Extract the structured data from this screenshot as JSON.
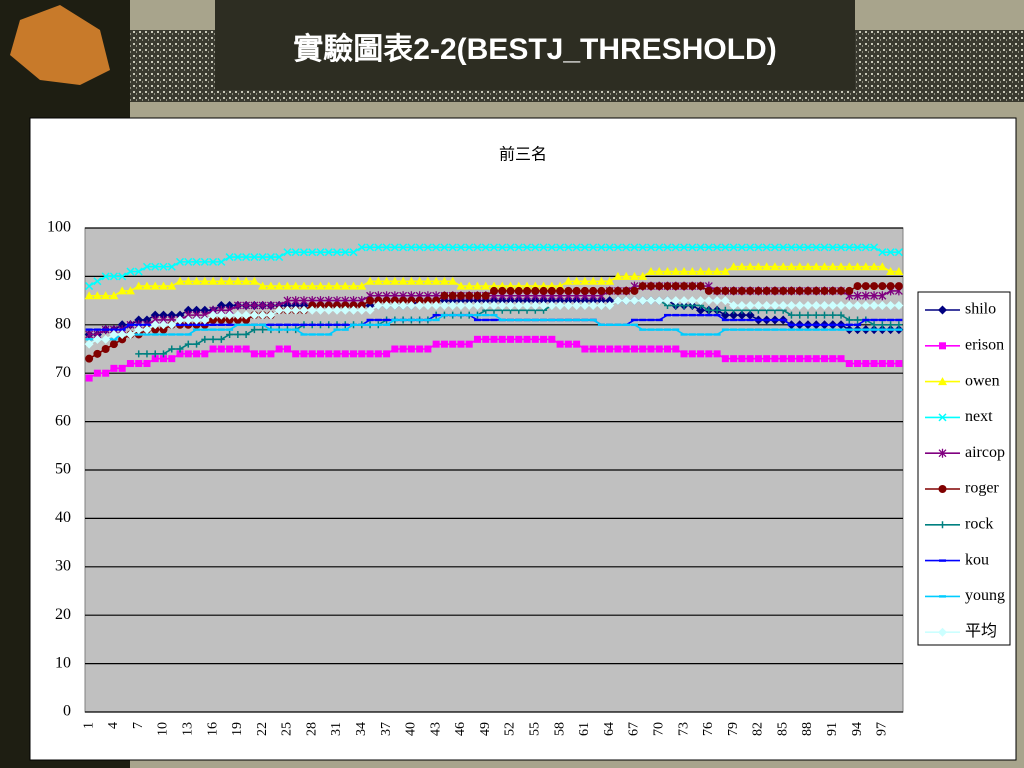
{
  "slide_title": "實驗圖表2-2(BESTJ_THRESHOLD)",
  "chart_data": {
    "type": "line",
    "title": "前三名",
    "categories": [
      "1",
      null,
      null,
      "4",
      null,
      null,
      "7",
      null,
      null,
      "10",
      null,
      null,
      "13",
      null,
      null,
      "16",
      null,
      null,
      "19",
      null,
      null,
      "22",
      null,
      null,
      "25",
      null,
      null,
      "28",
      null,
      null,
      "31",
      null,
      null,
      "34",
      null,
      null,
      "37",
      null,
      null,
      "40",
      null,
      null,
      "43",
      null,
      null,
      "46",
      null,
      null,
      "49",
      null,
      null,
      "52",
      null,
      null,
      "55",
      null,
      null,
      "58",
      null,
      null,
      "61",
      null,
      null,
      "64",
      null,
      null,
      "67",
      null,
      null,
      "70",
      null,
      null,
      "73",
      null,
      null,
      "76",
      null,
      null,
      "79",
      null,
      null,
      "82",
      null,
      null,
      "85",
      null,
      null,
      "88",
      null,
      null,
      "91",
      null,
      null,
      "94",
      null,
      null,
      "97",
      null,
      null
    ],
    "ylim": [
      0,
      100
    ],
    "yticks": [
      0,
      10,
      20,
      30,
      40,
      50,
      60,
      70,
      80,
      90,
      100
    ],
    "grid": true,
    "legend": "right",
    "series": [
      {
        "name": "shilo",
        "color": "#000080",
        "marker": "diamond",
        "values": [
          78,
          78,
          79,
          79,
          80,
          80,
          81,
          81,
          82,
          82,
          82,
          82,
          83,
          83,
          83,
          83,
          84,
          84,
          84,
          84,
          84,
          84,
          84,
          84,
          84,
          84,
          84,
          84,
          84,
          84,
          84,
          84,
          84,
          84,
          84,
          84,
          84,
          84,
          84,
          84,
          85,
          85,
          85,
          85,
          85,
          85,
          85,
          85,
          85,
          85,
          85,
          85,
          85,
          85,
          85,
          85,
          85,
          85,
          85,
          85,
          85,
          85,
          85,
          85,
          85,
          85,
          85,
          85,
          85,
          85,
          85,
          84,
          84,
          84,
          83,
          83,
          83,
          82,
          82,
          82,
          82,
          81,
          81,
          81,
          81,
          80,
          80,
          80,
          80,
          80,
          80,
          80,
          79,
          79,
          79,
          79,
          79,
          79,
          79
        ]
      },
      {
        "name": "erison",
        "color": "#ff00ff",
        "marker": "square",
        "values": [
          69,
          70,
          70,
          71,
          71,
          72,
          72,
          72,
          73,
          73,
          73,
          74,
          74,
          74,
          74,
          75,
          75,
          75,
          75,
          75,
          74,
          74,
          74,
          75,
          75,
          74,
          74,
          74,
          74,
          74,
          74,
          74,
          74,
          74,
          74,
          74,
          74,
          75,
          75,
          75,
          75,
          75,
          76,
          76,
          76,
          76,
          76,
          77,
          77,
          77,
          77,
          77,
          77,
          77,
          77,
          77,
          77,
          76,
          76,
          76,
          75,
          75,
          75,
          75,
          75,
          75,
          75,
          75,
          75,
          75,
          75,
          75,
          74,
          74,
          74,
          74,
          74,
          73,
          73,
          73,
          73,
          73,
          73,
          73,
          73,
          73,
          73,
          73,
          73,
          73,
          73,
          73,
          72,
          72,
          72,
          72,
          72,
          72,
          72
        ]
      },
      {
        "name": "owen",
        "color": "#ffff00",
        "marker": "triangle",
        "values": [
          86,
          86,
          86,
          86,
          87,
          87,
          88,
          88,
          88,
          88,
          88,
          89,
          89,
          89,
          89,
          89,
          89,
          89,
          89,
          89,
          89,
          88,
          88,
          88,
          88,
          88,
          88,
          88,
          88,
          88,
          88,
          88,
          88,
          88,
          89,
          89,
          89,
          89,
          89,
          89,
          89,
          89,
          89,
          89,
          89,
          88,
          88,
          88,
          88,
          88,
          88,
          88,
          88,
          88,
          88,
          88,
          88,
          88,
          89,
          89,
          89,
          89,
          89,
          89,
          90,
          90,
          90,
          90,
          91,
          91,
          91,
          91,
          91,
          91,
          91,
          91,
          91,
          91,
          92,
          92,
          92,
          92,
          92,
          92,
          92,
          92,
          92,
          92,
          92,
          92,
          92,
          92,
          92,
          92,
          92,
          92,
          92,
          91,
          91
        ]
      },
      {
        "name": "next",
        "color": "#00ffff",
        "marker": "x",
        "values": [
          88,
          89,
          90,
          90,
          90,
          91,
          91,
          92,
          92,
          92,
          92,
          93,
          93,
          93,
          93,
          93,
          93,
          94,
          94,
          94,
          94,
          94,
          94,
          94,
          95,
          95,
          95,
          95,
          95,
          95,
          95,
          95,
          95,
          96,
          96,
          96,
          96,
          96,
          96,
          96,
          96,
          96,
          96,
          96,
          96,
          96,
          96,
          96,
          96,
          96,
          96,
          96,
          96,
          96,
          96,
          96,
          96,
          96,
          96,
          96,
          96,
          96,
          96,
          96,
          96,
          96,
          96,
          96,
          96,
          96,
          96,
          96,
          96,
          96,
          96,
          96,
          96,
          96,
          96,
          96,
          96,
          96,
          96,
          96,
          96,
          96,
          96,
          96,
          96,
          96,
          96,
          96,
          96,
          96,
          96,
          96,
          95,
          95,
          95
        ]
      },
      {
        "name": "aircop",
        "color": "#800080",
        "marker": "star",
        "values": [
          78,
          78,
          79,
          79,
          79,
          80,
          80,
          80,
          81,
          81,
          81,
          81,
          82,
          82,
          82,
          83,
          83,
          83,
          84,
          84,
          84,
          84,
          84,
          84,
          85,
          85,
          85,
          85,
          85,
          85,
          85,
          85,
          85,
          85,
          86,
          86,
          86,
          86,
          86,
          86,
          86,
          86,
          86,
          86,
          86,
          86,
          86,
          86,
          86,
          86,
          86,
          86,
          86,
          86,
          86,
          86,
          86,
          86,
          86,
          86,
          86,
          86,
          86,
          87,
          87,
          87,
          88,
          88,
          88,
          88,
          88,
          88,
          88,
          88,
          88,
          88,
          87,
          87,
          87,
          87,
          87,
          87,
          87,
          87,
          87,
          87,
          87,
          87,
          87,
          87,
          87,
          87,
          86,
          86,
          86,
          86,
          86,
          87,
          87
        ]
      },
      {
        "name": "roger",
        "color": "#800000",
        "marker": "circle",
        "values": [
          73,
          74,
          75,
          76,
          77,
          78,
          78,
          79,
          79,
          79,
          80,
          80,
          80,
          80,
          80,
          81,
          81,
          81,
          81,
          81,
          82,
          82,
          82,
          83,
          83,
          83,
          83,
          84,
          84,
          84,
          84,
          84,
          84,
          84,
          85,
          85,
          85,
          85,
          85,
          85,
          85,
          85,
          85,
          86,
          86,
          86,
          86,
          86,
          86,
          87,
          87,
          87,
          87,
          87,
          87,
          87,
          87,
          87,
          87,
          87,
          87,
          87,
          87,
          87,
          87,
          87,
          87,
          88,
          88,
          88,
          88,
          88,
          88,
          88,
          88,
          87,
          87,
          87,
          87,
          87,
          87,
          87,
          87,
          87,
          87,
          87,
          87,
          87,
          87,
          87,
          87,
          87,
          87,
          88,
          88,
          88,
          88,
          88,
          88
        ]
      },
      {
        "name": "rock",
        "color": "#008080",
        "marker": "plus",
        "values": [
          null,
          null,
          null,
          null,
          null,
          null,
          74,
          74,
          74,
          74,
          75,
          75,
          76,
          76,
          77,
          77,
          77,
          78,
          78,
          78,
          79,
          79,
          79,
          79,
          79,
          79,
          80,
          80,
          80,
          80,
          80,
          80,
          80,
          80,
          80,
          80,
          81,
          81,
          81,
          81,
          81,
          81,
          82,
          82,
          82,
          82,
          82,
          82,
          83,
          83,
          83,
          83,
          83,
          83,
          83,
          83,
          84,
          84,
          84,
          84,
          84,
          84,
          84,
          84,
          85,
          85,
          85,
          85,
          85,
          85,
          84,
          84,
          84,
          84,
          84,
          83,
          83,
          83,
          83,
          83,
          83,
          83,
          83,
          83,
          83,
          82,
          82,
          82,
          82,
          82,
          82,
          82,
          81,
          81,
          81,
          80,
          80,
          80,
          80
        ]
      },
      {
        "name": "kou",
        "color": "#0000ff",
        "marker": "dash",
        "values": [
          79,
          79,
          79,
          79,
          79,
          80,
          80,
          80,
          80,
          80,
          80,
          80,
          80,
          80,
          80,
          80,
          80,
          80,
          80,
          80,
          80,
          80,
          80,
          80,
          80,
          80,
          80,
          80,
          80,
          80,
          80,
          80,
          80,
          80,
          81,
          81,
          81,
          81,
          81,
          81,
          81,
          81,
          82,
          82,
          82,
          82,
          82,
          81,
          81,
          81,
          81,
          81,
          81,
          81,
          81,
          81,
          81,
          81,
          81,
          81,
          81,
          81,
          80,
          80,
          80,
          80,
          81,
          81,
          81,
          81,
          82,
          82,
          82,
          82,
          82,
          82,
          82,
          81,
          81,
          81,
          81,
          81,
          81,
          81,
          81,
          80,
          80,
          80,
          80,
          80,
          80,
          80,
          80,
          80,
          81,
          81,
          81,
          81,
          81
        ]
      },
      {
        "name": "young",
        "color": "#00ccff",
        "marker": "dash",
        "values": [
          77,
          77,
          77,
          77,
          78,
          78,
          78,
          78,
          78,
          78,
          78,
          78,
          78,
          79,
          79,
          79,
          79,
          79,
          80,
          80,
          80,
          80,
          79,
          79,
          79,
          79,
          78,
          78,
          78,
          78,
          79,
          79,
          80,
          80,
          80,
          80,
          80,
          81,
          81,
          81,
          81,
          81,
          81,
          82,
          82,
          82,
          82,
          82,
          82,
          82,
          81,
          81,
          81,
          81,
          81,
          81,
          81,
          81,
          81,
          81,
          81,
          81,
          80,
          80,
          80,
          80,
          80,
          79,
          79,
          79,
          79,
          79,
          78,
          78,
          78,
          78,
          78,
          79,
          79,
          79,
          79,
          79,
          79,
          79,
          79,
          79,
          79,
          79,
          79,
          79,
          79,
          79,
          79,
          79,
          79,
          79,
          79,
          79,
          79
        ]
      },
      {
        "name": "平均",
        "color": "#ccffff",
        "marker": "diamond",
        "values": [
          76,
          77,
          77,
          78,
          78,
          78,
          79,
          79,
          80,
          80,
          80,
          81,
          81,
          81,
          81,
          82,
          82,
          82,
          82,
          82,
          82,
          82,
          82,
          83,
          83,
          83,
          83,
          83,
          83,
          83,
          83,
          83,
          83,
          83,
          83,
          84,
          84,
          84,
          84,
          84,
          84,
          84,
          84,
          84,
          84,
          84,
          84,
          84,
          84,
          84,
          84,
          84,
          84,
          84,
          84,
          84,
          84,
          84,
          84,
          84,
          84,
          84,
          84,
          84,
          85,
          85,
          85,
          85,
          85,
          85,
          85,
          85,
          85,
          85,
          85,
          85,
          85,
          85,
          84,
          84,
          84,
          84,
          84,
          84,
          84,
          84,
          84,
          84,
          84,
          84,
          84,
          84,
          84,
          84,
          84,
          84,
          84,
          84,
          84
        ]
      }
    ]
  }
}
